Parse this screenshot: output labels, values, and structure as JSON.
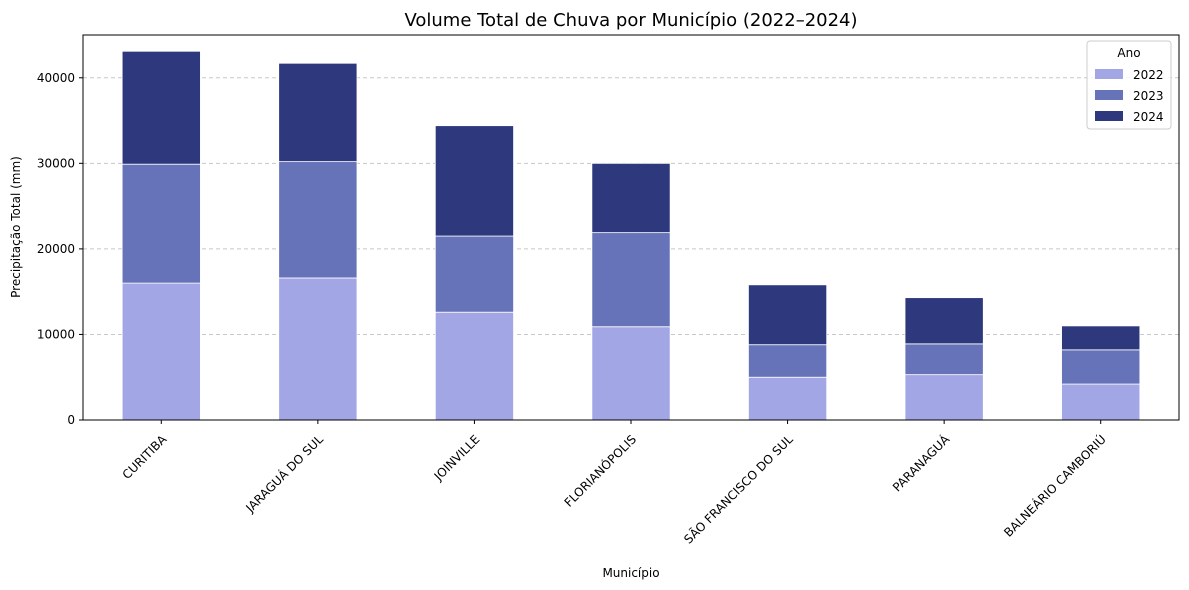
{
  "chart_data": {
    "type": "bar",
    "stacked": true,
    "title": "Volume Total de Chuva por Município (2022–2024)",
    "xlabel": "Município",
    "ylabel": "Precipitação Total (mm)",
    "ylim": [
      0,
      45000
    ],
    "yticks": [
      "0",
      "10000",
      "20000",
      "30000",
      "40000"
    ],
    "ytick_values": [
      0,
      10000,
      20000,
      30000,
      40000
    ],
    "grid": "horizontal-dashed",
    "categories": [
      "CURITIBA",
      "JARAGUÁ DO SUL",
      "JOINVILLE",
      "FLORIANÓPOLIS",
      "SÃO FRANCISCO DO SUL",
      "PARANAGUÁ",
      "BALNEÁRIO CAMBORIÚ"
    ],
    "legend_title": "Ano",
    "legend_position": "top-right",
    "series": [
      {
        "name": "2022",
        "color": "#a2a6e5",
        "values": [
          16000,
          16600,
          12600,
          10900,
          5000,
          5300,
          4200
        ]
      },
      {
        "name": "2023",
        "color": "#6673b9",
        "values": [
          13900,
          13600,
          8900,
          11000,
          3800,
          3600,
          4000
        ]
      },
      {
        "name": "2024",
        "color": "#2e387c",
        "values": [
          13200,
          11500,
          12900,
          8100,
          7000,
          5400,
          2800
        ]
      }
    ]
  }
}
